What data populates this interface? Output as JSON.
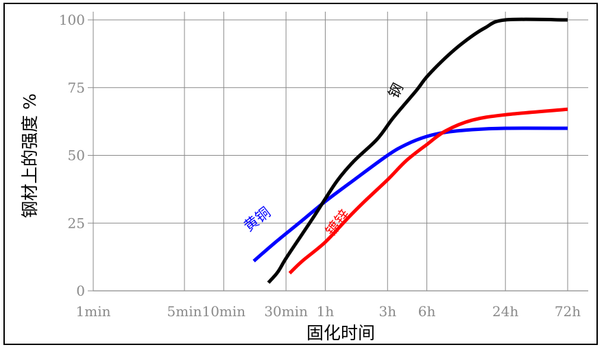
{
  "chart_data": {
    "type": "line",
    "title": "",
    "xlabel": "固化时间",
    "ylabel": "钢材上的强度 %",
    "x_scale": "log",
    "x_unit": "minutes",
    "xlim": [
      1,
      4320
    ],
    "ylim": [
      0,
      100
    ],
    "grid": true,
    "legend": "none",
    "x_ticks": [
      {
        "label": "1min",
        "value": 1
      },
      {
        "label": "5min",
        "value": 5
      },
      {
        "label": "10min",
        "value": 10
      },
      {
        "label": "30min",
        "value": 30
      },
      {
        "label": "1h",
        "value": 60
      },
      {
        "label": "3h",
        "value": 180
      },
      {
        "label": "6h",
        "value": 360
      },
      {
        "label": "24h",
        "value": 1440
      },
      {
        "label": "72h",
        "value": 4320
      }
    ],
    "y_ticks": [
      {
        "label": "0",
        "value": 0
      },
      {
        "label": "25",
        "value": 25
      },
      {
        "label": "50",
        "value": 50
      },
      {
        "label": "75",
        "value": 75
      },
      {
        "label": "100",
        "value": 100
      }
    ],
    "series": [
      {
        "name": "钢",
        "color": "#000000",
        "points": [
          [
            22,
            3
          ],
          [
            26,
            7
          ],
          [
            30,
            12
          ],
          [
            40,
            21
          ],
          [
            50,
            28
          ],
          [
            60,
            34
          ],
          [
            75,
            41
          ],
          [
            100,
            48
          ],
          [
            150,
            56
          ],
          [
            200,
            64
          ],
          [
            300,
            74
          ],
          [
            360,
            79
          ],
          [
            500,
            86
          ],
          [
            700,
            92
          ],
          [
            1000,
            97
          ],
          [
            1440,
            100
          ],
          [
            4320,
            100
          ]
        ]
      },
      {
        "name": "黄铜",
        "color": "#0000ff",
        "points": [
          [
            17,
            11
          ],
          [
            25,
            18
          ],
          [
            40,
            26
          ],
          [
            60,
            33
          ],
          [
            100,
            41
          ],
          [
            180,
            50
          ],
          [
            250,
            54
          ],
          [
            360,
            57
          ],
          [
            500,
            58.5
          ],
          [
            800,
            59.5
          ],
          [
            1440,
            60
          ],
          [
            4320,
            60
          ]
        ]
      },
      {
        "name": "镀锌",
        "color": "#ff0000",
        "points": [
          [
            32,
            6.5
          ],
          [
            40,
            11
          ],
          [
            60,
            18
          ],
          [
            90,
            27
          ],
          [
            120,
            33
          ],
          [
            180,
            41
          ],
          [
            250,
            48
          ],
          [
            360,
            54
          ],
          [
            500,
            59
          ],
          [
            800,
            63
          ],
          [
            1440,
            65
          ],
          [
            4320,
            67
          ]
        ]
      }
    ],
    "annotations": [
      {
        "text": "钢",
        "series": "钢",
        "x": 225,
        "y": 73,
        "color": "#000000"
      },
      {
        "text": "黄铜",
        "series": "黄铜",
        "x": 19,
        "y": 25,
        "color": "#0000ff"
      },
      {
        "text": "镀锌",
        "series": "镀锌",
        "x": 80,
        "y": 24,
        "color": "#ff0000"
      }
    ]
  }
}
